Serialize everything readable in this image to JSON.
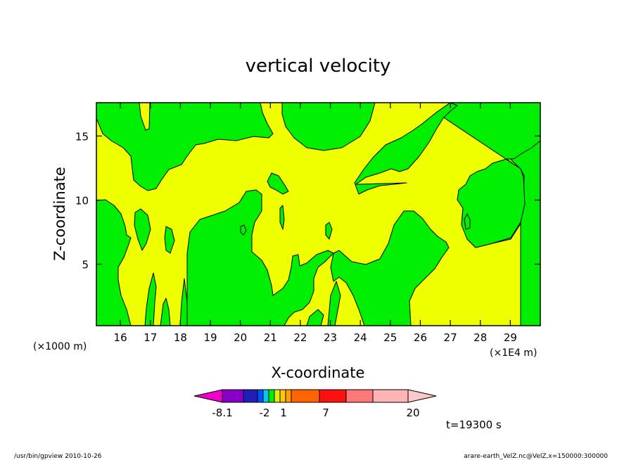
{
  "chart_data": {
    "type": "heatmap",
    "title": "vertical velocity",
    "xlabel": "X-coordinate",
    "ylabel": "Z-coordinate",
    "x_unit_left": "(×1000 m)",
    "x_unit_right": "(×1E4 m)",
    "xlim": [
      15.2,
      30.0
    ],
    "ylim": [
      0.2,
      17.6
    ],
    "x_ticks": [
      16,
      17,
      18,
      19,
      20,
      21,
      22,
      23,
      24,
      25,
      26,
      27,
      28,
      29
    ],
    "y_ticks": [
      5,
      10,
      15
    ],
    "background_color": "#f0ff00",
    "fill_color": "#00ee00",
    "fill_meaning": "w in [-2, 1) m/s shaded green; w >= 1 shaded yellow",
    "colorbar": {
      "tick_labels": [
        "-8.1",
        "-2",
        "1",
        "7",
        "20"
      ],
      "colors": [
        "#ee00c8",
        "#8800c8",
        "#1f1fb8",
        "#0050ff",
        "#00c8f0",
        "#00ee00",
        "#e0f000",
        "#ffc800",
        "#ffa000",
        "#ff6400",
        "#ff1010",
        "#ff7878",
        "#ffb4b4",
        "#ffc8c8"
      ]
    },
    "time_label": "t=19300 s"
  },
  "footer": {
    "left": "/usr/bin/gpview   2010-10-26",
    "right": "arare-earth_VelZ.nc@VelZ,x=150000:300000"
  }
}
